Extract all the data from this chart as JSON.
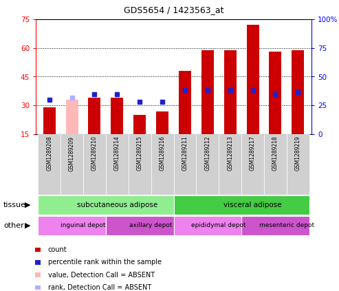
{
  "title": "GDS5654 / 1423563_at",
  "samples": [
    "GSM1289208",
    "GSM1289209",
    "GSM1289210",
    "GSM1289214",
    "GSM1289215",
    "GSM1289216",
    "GSM1289211",
    "GSM1289212",
    "GSM1289213",
    "GSM1289217",
    "GSM1289218",
    "GSM1289219"
  ],
  "red_values": [
    29,
    33,
    34,
    34,
    25,
    27,
    48,
    59,
    59,
    72,
    58,
    59
  ],
  "blue_values": [
    33,
    34,
    36,
    36,
    32,
    32,
    38,
    38,
    38,
    38,
    36,
    37
  ],
  "absent_mask": [
    false,
    true,
    false,
    false,
    false,
    false,
    false,
    false,
    false,
    false,
    false,
    false
  ],
  "ylim_left": [
    15,
    75
  ],
  "ylim_right": [
    0,
    100
  ],
  "yticks_left": [
    15,
    30,
    45,
    60,
    75
  ],
  "yticks_right": [
    0,
    25,
    50,
    75,
    100
  ],
  "ytick_labels_right": [
    "0",
    "25",
    "50",
    "75",
    "100%"
  ],
  "bar_color_normal": "#cc0000",
  "bar_color_absent": "#ffb8b8",
  "blue_color": "#2020cc",
  "blue_absent_color": "#b0b0ff",
  "tissue_groups": [
    {
      "label": "subcutaneous adipose",
      "start": 0,
      "end": 6,
      "color": "#90ee90"
    },
    {
      "label": "visceral adipose",
      "start": 6,
      "end": 12,
      "color": "#44cc44"
    }
  ],
  "other_groups": [
    {
      "label": "inguinal depot",
      "start": 0,
      "end": 3,
      "color": "#ee82ee"
    },
    {
      "label": "axillary depot",
      "start": 3,
      "end": 6,
      "color": "#cc55cc"
    },
    {
      "label": "epididymal depot",
      "start": 6,
      "end": 9,
      "color": "#ee82ee"
    },
    {
      "label": "mesenteric depot",
      "start": 9,
      "end": 12,
      "color": "#cc55cc"
    }
  ],
  "legend_items": [
    {
      "label": "count",
      "color": "#cc0000"
    },
    {
      "label": "percentile rank within the sample",
      "color": "#2020cc"
    },
    {
      "label": "value, Detection Call = ABSENT",
      "color": "#ffb8b8"
    },
    {
      "label": "rank, Detection Call = ABSENT",
      "color": "#b0b0ff"
    }
  ],
  "bar_width": 0.55,
  "blue_marker_size": 5,
  "sample_box_color": "#d0d0d0",
  "chart_bg": "#ffffff",
  "fig_bg": "#ffffff"
}
